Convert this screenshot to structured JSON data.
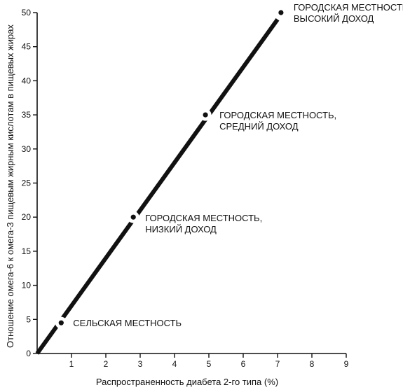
{
  "chart_data": {
    "type": "line",
    "title": "",
    "xlabel": "Распространенность диабета 2-го типа (%)",
    "ylabel": "Отношение омега-6 к омега-3 пищевым жирным кислотам в пищевых жирах",
    "xlim": [
      0,
      9
    ],
    "ylim": [
      0,
      50
    ],
    "x_ticks": [
      1,
      2,
      3,
      4,
      5,
      6,
      7,
      8,
      9
    ],
    "y_ticks": [
      0,
      5,
      10,
      15,
      20,
      25,
      30,
      35,
      40,
      45,
      50
    ],
    "grid": false,
    "legend": "none",
    "series": [
      {
        "points": [
          {
            "x": 0.7,
            "y": 4.5,
            "label": [
              "СЕЛЬСКАЯ МЕСТНОСТЬ"
            ]
          },
          {
            "x": 2.8,
            "y": 20,
            "label": [
              "ГОРОДСКАЯ МЕСТНОСТЬ,",
              "НИЗКИЙ ДОХОД"
            ]
          },
          {
            "x": 4.9,
            "y": 35,
            "label": [
              "ГОРОДСКАЯ МЕСТНОСТЬ,",
              "СРЕДНИЙ ДОХОД"
            ]
          },
          {
            "x": 7.1,
            "y": 50,
            "label": [
              "ГОРОДСКАЯ МЕСТНОСТЬ,",
              "ВЫСОКИЙ ДОХОД"
            ]
          }
        ]
      }
    ],
    "trend_line": {
      "from": {
        "x": 0,
        "y": 0
      },
      "to": {
        "x": 7,
        "y": 49
      }
    },
    "colors": {
      "line": "#111111",
      "axis": "#111111",
      "background": "#ffffff"
    }
  }
}
